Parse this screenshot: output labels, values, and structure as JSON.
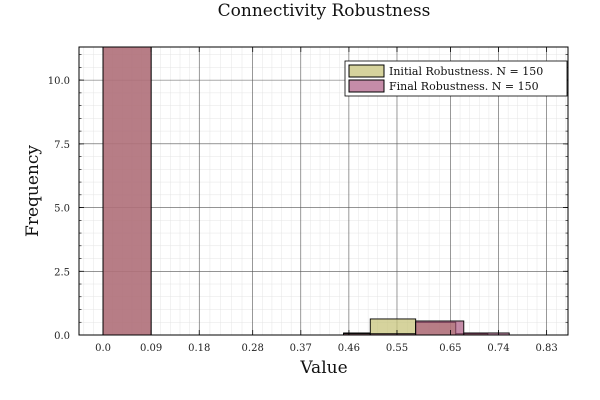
{
  "chart_data": {
    "type": "bar",
    "title": "Connectivity Robustness",
    "xlabel": "Value",
    "ylabel": "Frequency",
    "xlim": [
      -0.045,
      0.87
    ],
    "ylim": [
      0,
      11.3
    ],
    "x_ticks": [
      0.0,
      0.09,
      0.18,
      0.28,
      0.37,
      0.46,
      0.55,
      0.65,
      0.74,
      0.83
    ],
    "x_tick_labels": [
      "0.0",
      "0.09",
      "0.18",
      "0.28",
      "0.37",
      "0.46",
      "0.55",
      "0.65",
      "0.74",
      "0.83"
    ],
    "y_ticks": [
      0.0,
      2.5,
      5.0,
      7.5,
      10.0
    ],
    "y_tick_labels": [
      "0.0",
      "2.5",
      "5.0",
      "7.5",
      "10.0"
    ],
    "grid": true,
    "legend_position": "top-right",
    "series": [
      {
        "name": "Initial Robustness. N = 150",
        "color": "#c8c47c",
        "bins": [
          {
            "x0": 0.0,
            "x1": 0.09,
            "value": 11.3
          },
          {
            "x0": 0.45,
            "x1": 0.5,
            "value": 0.08
          },
          {
            "x0": 0.5,
            "x1": 0.585,
            "value": 0.63
          },
          {
            "x0": 0.585,
            "x1": 0.66,
            "value": 0.5
          },
          {
            "x0": 0.66,
            "x1": 0.72,
            "value": 0.05
          }
        ]
      },
      {
        "name": "Final Robustness. N = 150",
        "color": "#a64f7a",
        "bins": [
          {
            "x0": 0.0,
            "x1": 0.09,
            "value": 11.3
          },
          {
            "x0": 0.45,
            "x1": 0.5,
            "value": 0.05
          },
          {
            "x0": 0.5,
            "x1": 0.585,
            "value": 0.05
          },
          {
            "x0": 0.585,
            "x1": 0.675,
            "value": 0.55
          },
          {
            "x0": 0.675,
            "x1": 0.76,
            "value": 0.08
          }
        ]
      }
    ]
  }
}
